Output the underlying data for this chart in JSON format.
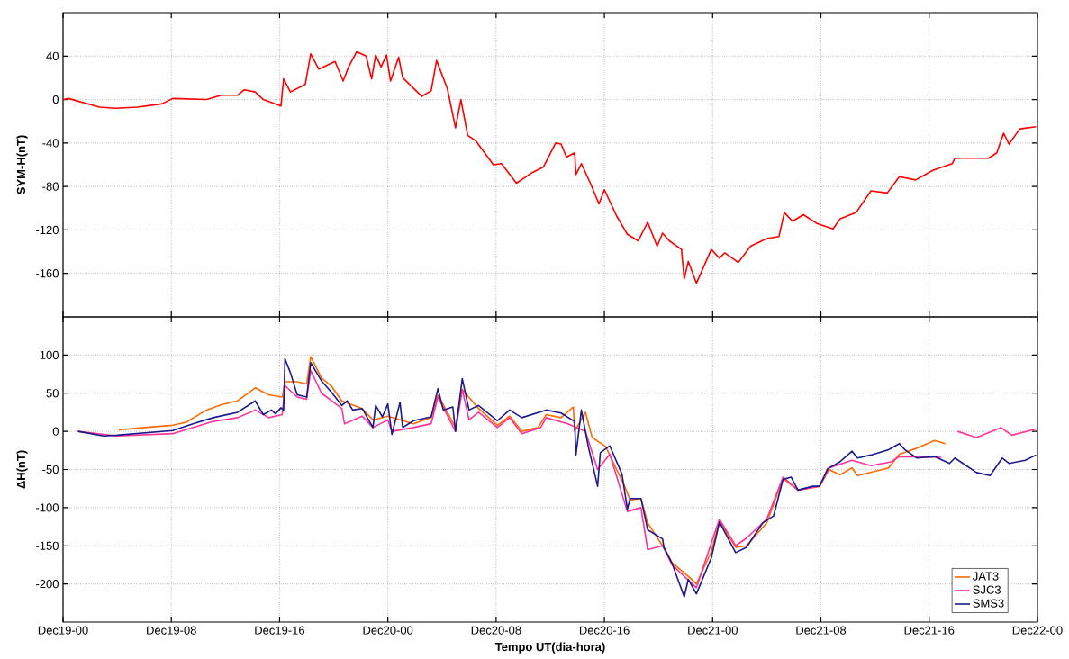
{
  "chart_data": [
    {
      "type": "line",
      "ylabel": "SYM-H(nT)",
      "xlim": [
        "--12-19T00:00",
        "--12-22T00:00"
      ],
      "ylim": [
        -200,
        80
      ],
      "grid": true,
      "tick_labels": "y",
      "xticks": [
        {
          "value": "--12-19T00:00",
          "label": null
        },
        {
          "value": "--12-19T08:00",
          "label": null
        },
        {
          "value": "--12-19T16:00",
          "label": null
        },
        {
          "value": "--12-20T00:00",
          "label": null
        },
        {
          "value": "--12-20T08:00",
          "label": null
        },
        {
          "value": "--12-20T16:00",
          "label": null
        },
        {
          "value": "--12-21T00:00",
          "label": null
        },
        {
          "value": "--12-21T08:00",
          "label": null
        },
        {
          "value": "--12-21T16:00",
          "label": null
        },
        {
          "value": "--12-22T00:00",
          "label": null
        }
      ],
      "yticks": [
        -160,
        -120,
        -80,
        -40,
        0,
        40
      ],
      "series": [
        {
          "color": "#ff0000",
          "x": [
            "--12-19T00:00",
            "--12-19T00:24",
            "--12-19T02:42",
            "--12-19T03:54",
            "--12-19T05:30",
            "--12-19T07:18",
            "--12-19T08:06",
            "--12-19T10:36",
            "--12-19T11:42",
            "--12-19T12:54",
            "--12-19T13:24",
            "--12-19T14:12",
            "--12-19T14:48",
            "--12-19T16:06",
            "--12-19T16:18",
            "--12-19T16:48",
            "--12-19T17:54",
            "--12-19T18:18",
            "--12-19T18:54",
            "--12-19T20:06",
            "--12-19T20:42",
            "--12-19T21:06",
            "--12-19T21:42",
            "--12-19T22:24",
            "--12-19T22:48",
            "--12-19T23:06",
            "--12-19T23:30",
            "--12-19T23:54",
            "--12-20T00:12",
            "--12-20T00:48",
            "--12-20T01:06",
            "--12-20T01:36",
            "--12-20T02:30",
            "--12-20T03:12",
            "--12-20T03:36",
            "--12-20T04:24",
            "--12-20T05:00",
            "--12-20T05:24",
            "--12-20T05:54",
            "--12-20T06:30",
            "--12-20T07:48",
            "--12-20T08:24",
            "--12-20T09:30",
            "--12-20T10:42",
            "--12-20T11:30",
            "--12-20T12:24",
            "--12-20T12:48",
            "--12-20T13:12",
            "--12-20T13:48",
            "--12-20T13:54",
            "--12-20T14:18",
            "--12-20T15:00",
            "--12-20T15:36",
            "--12-20T16:00",
            "--12-20T16:54",
            "--12-20T17:42",
            "--12-20T18:30",
            "--12-20T19:12",
            "--12-20T19:54",
            "--12-20T20:18",
            "--12-20T20:48",
            "--12-20T21:42",
            "--12-20T21:54",
            "--12-20T22:12",
            "--12-20T22:48",
            "--12-20T23:54",
            "--12-21T00:30",
            "--12-21T00:54",
            "--12-21T01:54",
            "--12-21T02:48",
            "--12-21T04:00",
            "--12-21T04:54",
            "--12-21T05:18",
            "--12-21T05:54",
            "--12-21T06:42",
            "--12-21T07:42",
            "--12-21T08:54",
            "--12-21T09:24",
            "--12-21T10:36",
            "--12-21T11:42",
            "--12-21T12:54",
            "--12-21T13:48",
            "--12-21T15:00",
            "--12-21T16:18",
            "--12-21T17:42",
            "--12-21T17:54",
            "--12-21T20:24",
            "--12-21T21:00",
            "--12-21T21:30",
            "--12-21T21:54",
            "--12-21T22:42",
            "--12-21T23:54"
          ],
          "values": [
            0,
            1,
            -7,
            -8,
            -7,
            -4,
            1,
            0,
            4,
            4,
            9,
            7,
            0,
            -6,
            19,
            7,
            14,
            42,
            28,
            35,
            17,
            30,
            44,
            40,
            19,
            41,
            30,
            41,
            17,
            39,
            20,
            14,
            3,
            8,
            36,
            10,
            -26,
            0,
            -33,
            -38,
            -60,
            -59,
            -77,
            -67,
            -62,
            -40,
            -41,
            -53,
            -49,
            -69,
            -59,
            -78,
            -96,
            -83,
            -107,
            -124,
            -130,
            -113,
            -135,
            -123,
            -130,
            -138,
            -165,
            -149,
            -169,
            -138,
            -146,
            -141,
            -150,
            -135,
            -128,
            -126,
            -104,
            -112,
            -106,
            -114,
            -119,
            -110,
            -104,
            -84,
            -86,
            -71,
            -74,
            -65,
            -59,
            -54,
            -54,
            -49,
            -31,
            -41,
            -27,
            -25
          ]
        }
      ]
    },
    {
      "type": "line",
      "ylabel": "ΔH(nT)",
      "xlabel": "Tempo UT(dia-hora)",
      "xlim": [
        "--12-19T00:00",
        "--12-22T00:00"
      ],
      "ylim": [
        -250,
        150
      ],
      "grid": true,
      "legend": "bottom right",
      "xticks": [
        {
          "value": "--12-19T00:00",
          "label": "Dec19-00"
        },
        {
          "value": "--12-19T08:00",
          "label": "Dec19-08"
        },
        {
          "value": "--12-19T16:00",
          "label": "Dec19-16"
        },
        {
          "value": "--12-20T00:00",
          "label": "Dec20-00"
        },
        {
          "value": "--12-20T08:00",
          "label": "Dec20-08"
        },
        {
          "value": "--12-20T16:00",
          "label": "Dec20-16"
        },
        {
          "value": "--12-21T00:00",
          "label": "Dec21-00"
        },
        {
          "value": "--12-21T08:00",
          "label": "Dec21-08"
        },
        {
          "value": "--12-21T16:00",
          "label": "Dec21-16"
        },
        {
          "value": "--12-22T00:00",
          "label": "Dec22-00"
        }
      ],
      "yticks": [
        -200,
        -150,
        -100,
        -50,
        0,
        50,
        100
      ],
      "series": [
        {
          "name": "JAT3",
          "color": "#ff6a00",
          "x": [
            "--12-19T04:06",
            "--12-19T06:00",
            "--12-19T08:06",
            "--12-19T09:06",
            "--12-19T10:36",
            "--12-19T11:42",
            "--12-19T12:54",
            "--12-19T14:12",
            "--12-19T15:12",
            "--12-19T16:12",
            "--12-19T16:24",
            "--12-19T17:18",
            "--12-19T18:00",
            "--12-19T18:18",
            "--12-19T19:06",
            "--12-19T19:48",
            "--12-19T20:36",
            "--12-19T22:06",
            "--12-19T22:54",
            "--12-20T00:00",
            "--12-20T01:54",
            "--12-20T03:12",
            "--12-20T03:42",
            "--12-20T05:00",
            "--12-20T05:30",
            "--12-20T06:42",
            "--12-20T08:06",
            "--12-20T09:00",
            "--12-20T09:54",
            "--12-20T11:06",
            "--12-20T11:42",
            "--12-20T12:48",
            "--12-20T13:42",
            "--12-20T13:48",
            "--12-20T14:36",
            "--12-20T15:06",
            "--12-20T16:06",
            "--12-20T17:30",
            "--12-20T17:54",
            "--12-20T18:42",
            "--12-20T19:12",
            "--12-20T20:18",
            "--12-20T21:00",
            "--12-20T22:12",
            "--12-20T22:48",
            "--12-20T23:54",
            "--12-21T00:30",
            "--12-21T01:42",
            "--12-21T02:30",
            "--12-21T04:00",
            "--12-21T05:12",
            "--12-21T06:18",
            "--12-21T07:54",
            "--12-21T08:36",
            "--12-21T09:24",
            "--12-21T10:18",
            "--12-21T10:42",
            "--12-21T13:00",
            "--12-21T13:48",
            "--12-21T15:06",
            "--12-21T16:24",
            "--12-21T17:12"
          ],
          "values": [
            2,
            5,
            8,
            12,
            28,
            35,
            40,
            57,
            48,
            45,
            65,
            65,
            62,
            98,
            70,
            60,
            40,
            30,
            15,
            20,
            10,
            18,
            48,
            5,
            55,
            30,
            8,
            20,
            0,
            5,
            22,
            18,
            32,
            0,
            25,
            -8,
            -20,
            -72,
            -90,
            -88,
            -120,
            -150,
            -172,
            -190,
            -200,
            -158,
            -118,
            -152,
            -150,
            -120,
            -62,
            -77,
            -72,
            -50,
            -57,
            -48,
            -58,
            -48,
            -30,
            -22,
            -12,
            -16
          ]
        },
        {
          "name": "SJC3",
          "color": "#ff3399",
          "x": [
            "--12-19T01:06",
            "--12-19T04:00",
            "--12-19T08:06",
            "--12-19T09:36",
            "--12-19T11:06",
            "--12-19T12:54",
            "--12-19T14:12",
            "--12-19T15:12",
            "--12-19T16:12",
            "--12-19T16:24",
            "--12-19T17:18",
            "--12-19T18:00",
            "--12-19T18:18",
            "--12-19T19:06",
            "--12-19T20:36",
            "--12-19T20:48",
            "--12-19T22:06",
            "--12-19T22:54",
            "--12-20T00:00",
            "--12-20T00:18",
            "--12-20T01:54",
            "--12-20T03:12",
            "--12-20T03:42",
            "--12-20T05:00",
            "--12-20T05:30",
            "--12-20T06:00",
            "--12-20T06:42",
            "--12-20T08:06",
            "--12-20T09:00",
            "--12-20T09:54",
            "--12-20T11:18",
            "--12-20T11:42",
            "--12-20T13:18",
            "--12-20T14:36",
            "--12-20T15:30",
            "--12-20T16:24",
            "--12-20T17:42",
            "--12-20T18:42",
            "--12-20T19:12",
            "--12-20T20:18",
            "--12-20T21:00",
            "--12-20T22:12",
            "--12-20T22:48",
            "--12-21T00:30",
            "--12-21T01:42",
            "--12-21T02:30",
            "--12-21T04:00",
            "--12-21T05:12",
            "--12-21T06:18",
            "--12-21T07:54",
            "--12-21T08:36",
            "--12-21T10:18",
            "--12-21T11:42",
            "--12-21T13:12",
            "--12-21T13:48",
            "--12-21T16:54",
            "--12-21T17:30",
            "--12-21T18:06",
            "--12-21T19:30",
            "--12-21T21:18",
            "--12-21T22:06",
            "--12-21T23:54"
          ],
          "values": [
            0,
            -6,
            -3,
            5,
            13,
            18,
            28,
            18,
            22,
            60,
            45,
            42,
            80,
            50,
            30,
            10,
            20,
            5,
            15,
            0,
            5,
            10,
            45,
            0,
            55,
            15,
            25,
            5,
            18,
            -3,
            5,
            18,
            10,
            0,
            -50,
            -30,
            -105,
            -100,
            -155,
            -150,
            -175,
            -195,
            -205,
            -115,
            -150,
            -140,
            -115,
            -60,
            -77,
            -72,
            -48,
            -38,
            -45,
            -40,
            -33,
            -34,
            null,
            0,
            -8,
            5,
            -5,
            3
          ]
        },
        {
          "name": "SMS3",
          "color": "#1a1a8c",
          "x": [
            "--12-19T01:06",
            "--12-19T03:00",
            "--12-19T04:00",
            "--12-19T08:06",
            "--12-19T09:36",
            "--12-19T11:06",
            "--12-19T12:54",
            "--12-19T14:12",
            "--12-19T14:48",
            "--12-19T15:24",
            "--12-19T15:42",
            "--12-19T16:06",
            "--12-19T16:18",
            "--12-19T16:24",
            "--12-19T16:48",
            "--12-19T17:18",
            "--12-19T18:00",
            "--12-19T18:18",
            "--12-19T19:06",
            "--12-19T19:48",
            "--12-19T20:36",
            "--12-19T21:00",
            "--12-19T21:24",
            "--12-19T22:06",
            "--12-19T22:54",
            "--12-19T23:06",
            "--12-19T23:36",
            "--12-20T00:00",
            "--12-20T00:18",
            "--12-20T00:54",
            "--12-20T01:06",
            "--12-20T01:54",
            "--12-20T03:12",
            "--12-20T03:42",
            "--12-20T04:06",
            "--12-20T04:48",
            "--12-20T05:00",
            "--12-20T05:30",
            "--12-20T06:00",
            "--12-20T06:42",
            "--12-20T08:06",
            "--12-20T09:00",
            "--12-20T09:54",
            "--12-20T11:42",
            "--12-20T12:48",
            "--12-20T13:48",
            "--12-20T13:54",
            "--12-20T14:18",
            "--12-20T14:48",
            "--12-20T15:30",
            "--12-20T15:42",
            "--12-20T16:24",
            "--12-20T17:18",
            "--12-20T17:42",
            "--12-20T17:54",
            "--12-20T18:42",
            "--12-20T19:12",
            "--12-20T20:18",
            "--12-20T20:24",
            "--12-20T21:00",
            "--12-20T21:54",
            "--12-20T22:12",
            "--12-20T22:48",
            "--12-20T23:54",
            "--12-21T00:30",
            "--12-21T01:42",
            "--12-21T02:30",
            "--12-21T03:42",
            "--12-21T04:30",
            "--12-21T05:12",
            "--12-21T05:48",
            "--12-21T06:18",
            "--12-21T07:24",
            "--12-21T07:54",
            "--12-21T08:30",
            "--12-21T09:24",
            "--12-21T10:18",
            "--12-21T10:42",
            "--12-21T11:42",
            "--12-21T13:00",
            "--12-21T13:48",
            "--12-21T14:12",
            "--12-21T15:06",
            "--12-21T16:24",
            "--12-21T17:30",
            "--12-21T17:54",
            "--12-21T19:30",
            "--12-21T20:30",
            "--12-21T21:24",
            "--12-21T21:54",
            "--12-21T23:06",
            "--12-21T23:54"
          ],
          "values": [
            0,
            -6,
            -5,
            1,
            10,
            18,
            25,
            40,
            22,
            28,
            23,
            31,
            28,
            95,
            77,
            48,
            45,
            90,
            66,
            52,
            34,
            40,
            28,
            30,
            5,
            34,
            19,
            36,
            -4,
            38,
            5,
            14,
            19,
            56,
            28,
            32,
            0,
            69,
            28,
            34,
            14,
            28,
            18,
            28,
            24,
            13,
            -31,
            28,
            -19,
            -72,
            -28,
            -19,
            -56,
            -102,
            -88,
            -88,
            -129,
            -141,
            -152,
            -173,
            -217,
            -194,
            -213,
            -166,
            -119,
            -159,
            -152,
            -120,
            -111,
            -63,
            -60,
            -77,
            -72,
            -72,
            -49,
            -40,
            -26,
            -35,
            -31,
            -24,
            -16,
            -24,
            -35,
            -33,
            -42,
            -35,
            -54,
            -58,
            -35,
            -42,
            -38,
            -31
          ]
        }
      ]
    }
  ]
}
